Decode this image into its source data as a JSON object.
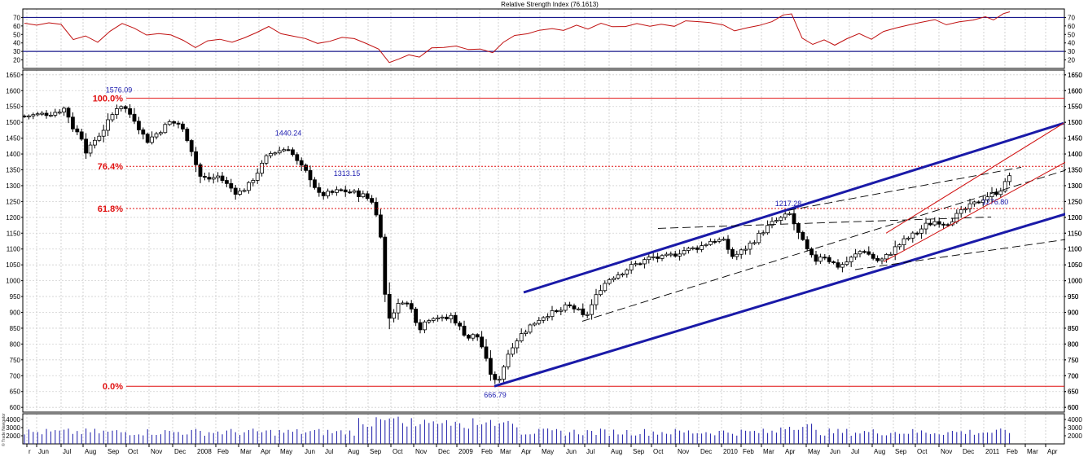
{
  "chart_data": [
    {
      "panel": "rsi",
      "type": "line",
      "title": "Relative Strength Index (76.1613)",
      "ylim": [
        10,
        80
      ],
      "yticks": [
        20,
        30,
        40,
        50,
        60,
        70
      ],
      "reference_lines": [
        30,
        70
      ],
      "line_color": "#c01010",
      "reference_color": "#1a1a8c"
    },
    {
      "panel": "price",
      "type": "candlestick",
      "ylim": [
        585,
        1665
      ],
      "yticks": [
        600,
        650,
        700,
        750,
        800,
        850,
        900,
        950,
        1000,
        1050,
        1100,
        1150,
        1200,
        1250,
        1300,
        1350,
        1400,
        1450,
        1500,
        1550,
        1600,
        1650
      ],
      "peak_labels": [
        {
          "text": "1576.09",
          "x": 146,
          "value": 1576.09
        },
        {
          "text": "1440.24",
          "x": 354,
          "value": 1440.24
        },
        {
          "text": "1313.15",
          "x": 426,
          "value": 1313.15
        },
        {
          "text": "1217.28",
          "x": 968,
          "value": 1217.28
        },
        {
          "text": "666.79",
          "x": 608,
          "value": 666.79
        },
        {
          "text": "1276.80",
          "x": 1222,
          "value": 1276.8
        }
      ],
      "fibonacci": [
        {
          "label": "100.0%",
          "value": 1576.09,
          "style": "solid"
        },
        {
          "label": "76.4%",
          "value": 1361.0,
          "style": "dotted"
        },
        {
          "label": "61.8%",
          "value": 1228.0,
          "style": "dotted"
        },
        {
          "label": "0.0%",
          "value": 666.79,
          "style": "solid"
        }
      ],
      "fib_color": "#e01010",
      "trend_color": "#1a1aa8",
      "channel_color": "#d01010",
      "candle_color": "#000000",
      "trendlines": [
        {
          "style": "thick",
          "from": {
            "x": 607,
            "value": 666.79
          },
          "to": {
            "x": 1336,
            "value": 1232
          }
        },
        {
          "style": "thick",
          "from": {
            "x": 643,
            "value": 963
          },
          "to": {
            "x": 1306,
            "value": 1497
          }
        },
        {
          "style": "dashed",
          "from": {
            "x": 715,
            "value": 872
          },
          "to": {
            "x": 1325,
            "value": 1362
          }
        },
        {
          "style": "dashed",
          "from": {
            "x": 808,
            "value": 1165
          },
          "to": {
            "x": 1217,
            "value": 1201
          }
        },
        {
          "style": "dashed",
          "from": {
            "x": 968,
            "value": 1222
          },
          "to": {
            "x": 1254,
            "value": 1358
          }
        },
        {
          "style": "dashed",
          "from": {
            "x": 1050,
            "value": 1035
          },
          "to": {
            "x": 1336,
            "value": 1140
          }
        },
        {
          "style": "thin-red",
          "from": {
            "x": 1085,
            "value": 1060
          },
          "to": {
            "x": 1336,
            "value": 1413
          }
        },
        {
          "style": "thin-red",
          "from": {
            "x": 1088,
            "value": 1150
          },
          "to": {
            "x": 1306,
            "value": 1497
          }
        }
      ]
    },
    {
      "panel": "volume",
      "type": "bar",
      "ylim": [
        1000,
        4700
      ],
      "yticks": [
        2000,
        3000,
        4000
      ],
      "bar_color": "#1a1aa8"
    }
  ],
  "x_axis": {
    "labels": [
      {
        "text": "r",
        "x": 33
      },
      {
        "text": "Jun",
        "x": 45
      },
      {
        "text": "Jul",
        "x": 75
      },
      {
        "text": "Aug",
        "x": 102
      },
      {
        "text": "Sep",
        "x": 130
      },
      {
        "text": "Oct",
        "x": 155
      },
      {
        "text": "Nov",
        "x": 183
      },
      {
        "text": "Dec",
        "x": 212
      },
      {
        "text": "2008",
        "x": 240
      },
      {
        "text": "Feb",
        "x": 265
      },
      {
        "text": "Mar",
        "x": 293
      },
      {
        "text": "Apr",
        "x": 318
      },
      {
        "text": "May",
        "x": 342
      },
      {
        "text": "Jun",
        "x": 372
      },
      {
        "text": "Jul",
        "x": 397
      },
      {
        "text": "Aug",
        "x": 425
      },
      {
        "text": "Sep",
        "x": 452
      },
      {
        "text": "Oct",
        "x": 480
      },
      {
        "text": "Nov",
        "x": 508
      },
      {
        "text": "Dec",
        "x": 536
      },
      {
        "text": "2009",
        "x": 561
      },
      {
        "text": "Feb",
        "x": 589
      },
      {
        "text": "Mar",
        "x": 612
      },
      {
        "text": "Apr",
        "x": 638
      },
      {
        "text": "May",
        "x": 663
      },
      {
        "text": "Jun",
        "x": 693
      },
      {
        "text": "Jul",
        "x": 718
      },
      {
        "text": "Aug",
        "x": 748
      },
      {
        "text": "Sep",
        "x": 775
      },
      {
        "text": "Oct",
        "x": 800
      },
      {
        "text": "Nov",
        "x": 830
      },
      {
        "text": "Dec",
        "x": 858
      },
      {
        "text": "2010",
        "x": 886
      },
      {
        "text": "Feb",
        "x": 910
      },
      {
        "text": "Mar",
        "x": 935
      },
      {
        "text": "Apr",
        "x": 962
      },
      {
        "text": "May",
        "x": 990
      },
      {
        "text": "Jun",
        "x": 1017
      },
      {
        "text": "Jul",
        "x": 1043
      },
      {
        "text": "Aug",
        "x": 1071
      },
      {
        "text": "Sep",
        "x": 1097
      },
      {
        "text": "Oct",
        "x": 1124
      },
      {
        "text": "Nov",
        "x": 1153
      },
      {
        "text": "Dec",
        "x": 1180
      },
      {
        "text": "2011",
        "x": 1208
      },
      {
        "text": "Feb",
        "x": 1234
      },
      {
        "text": "Mar",
        "x": 1259
      },
      {
        "text": "Apr",
        "x": 1284
      }
    ]
  },
  "watermark_text": "© Trade Navigator"
}
